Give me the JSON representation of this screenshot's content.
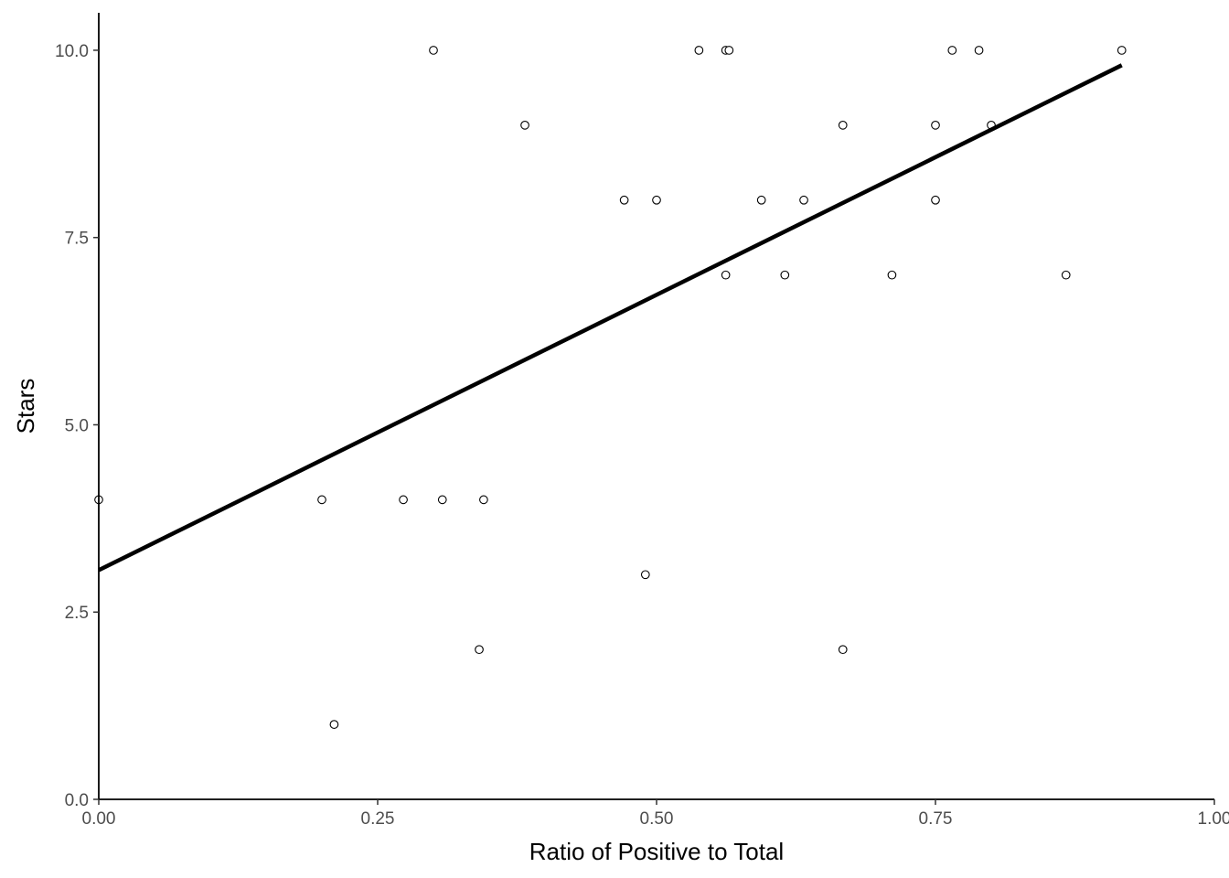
{
  "chart_data": {
    "type": "scatter",
    "title": "",
    "xlabel": "Ratio of Positive to Total",
    "ylabel": "Stars",
    "xlim": [
      0,
      1
    ],
    "ylim": [
      0,
      10.5
    ],
    "x_ticks": [
      0,
      0.25,
      0.5,
      0.75,
      1
    ],
    "x_tick_labels": [
      "0.00",
      "0.25",
      "0.50",
      "0.75",
      "1.00"
    ],
    "y_ticks": [
      0,
      2.5,
      5,
      7.5,
      10
    ],
    "y_tick_labels": [
      "0.0",
      "2.5",
      "5.0",
      "7.5",
      "10.0"
    ],
    "grid": false,
    "legend": "none",
    "points": [
      {
        "x": 0.0,
        "y": 4
      },
      {
        "x": 0.2,
        "y": 4
      },
      {
        "x": 0.211,
        "y": 1
      },
      {
        "x": 0.273,
        "y": 4
      },
      {
        "x": 0.3,
        "y": 10
      },
      {
        "x": 0.308,
        "y": 4
      },
      {
        "x": 0.341,
        "y": 2
      },
      {
        "x": 0.345,
        "y": 4
      },
      {
        "x": 0.382,
        "y": 9
      },
      {
        "x": 0.471,
        "y": 8
      },
      {
        "x": 0.49,
        "y": 3
      },
      {
        "x": 0.5,
        "y": 8
      },
      {
        "x": 0.538,
        "y": 10
      },
      {
        "x": 0.562,
        "y": 10
      },
      {
        "x": 0.562,
        "y": 7
      },
      {
        "x": 0.565,
        "y": 10
      },
      {
        "x": 0.594,
        "y": 8
      },
      {
        "x": 0.615,
        "y": 7
      },
      {
        "x": 0.632,
        "y": 8
      },
      {
        "x": 0.667,
        "y": 9
      },
      {
        "x": 0.667,
        "y": 2
      },
      {
        "x": 0.711,
        "y": 7
      },
      {
        "x": 0.75,
        "y": 9
      },
      {
        "x": 0.75,
        "y": 8
      },
      {
        "x": 0.765,
        "y": 10
      },
      {
        "x": 0.789,
        "y": 10
      },
      {
        "x": 0.8,
        "y": 9
      },
      {
        "x": 0.867,
        "y": 7
      },
      {
        "x": 0.917,
        "y": 10
      }
    ],
    "fit_line": {
      "x": [
        0.0,
        0.917
      ],
      "y": [
        3.06,
        9.8
      ]
    },
    "colors": {
      "points_stroke": "#000000",
      "points_fill": "#ffffff",
      "fit_line": "#000000",
      "axis": "#000000",
      "tick_labels": "#4d4d4d"
    }
  }
}
